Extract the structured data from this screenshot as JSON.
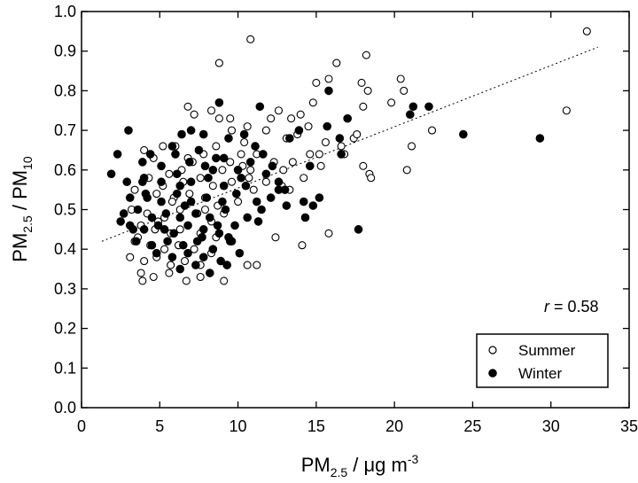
{
  "chart_data": {
    "type": "scatter",
    "title": "",
    "xlabel": {
      "main": "PM",
      "sub": "2.5",
      "rest": " / μg m",
      "sup": "-3"
    },
    "ylabel": {
      "a": "PM",
      "a_sub": "2.5",
      "mid": " / PM",
      "b_sub": "10"
    },
    "xlim": [
      0,
      35
    ],
    "ylim": [
      0.0,
      1.0
    ],
    "x_ticks": [
      "0",
      "5",
      "10",
      "15",
      "20",
      "25",
      "30",
      "35"
    ],
    "y_ticks": [
      "0.0",
      "0.1",
      "0.2",
      "0.3",
      "0.4",
      "0.5",
      "0.6",
      "0.7",
      "0.8",
      "0.9",
      "1.0"
    ],
    "grid": false,
    "legend_position": "bottom-right",
    "annotation": {
      "italic": "r",
      "text": " = 0.58"
    },
    "trendline": {
      "style": "dotted",
      "from": [
        1.3,
        0.42
      ],
      "to": [
        33.0,
        0.91
      ]
    },
    "series": [
      {
        "name": "Summer",
        "marker": "open-circle",
        "points": [
          [
            32.3,
            0.95
          ],
          [
            10.8,
            0.93
          ],
          [
            8.8,
            0.87
          ],
          [
            16.3,
            0.87
          ],
          [
            18.2,
            0.89
          ],
          [
            15.0,
            0.82
          ],
          [
            15.8,
            0.83
          ],
          [
            17.9,
            0.82
          ],
          [
            20.4,
            0.83
          ],
          [
            20.6,
            0.8
          ],
          [
            18.3,
            0.8
          ],
          [
            14.8,
            0.77
          ],
          [
            19.8,
            0.77
          ],
          [
            18.0,
            0.76
          ],
          [
            8.3,
            0.75
          ],
          [
            12.6,
            0.75
          ],
          [
            13.4,
            0.73
          ],
          [
            12.1,
            0.73
          ],
          [
            14.0,
            0.74
          ],
          [
            31.0,
            0.75
          ],
          [
            6.8,
            0.76
          ],
          [
            9.5,
            0.73
          ],
          [
            7.2,
            0.74
          ],
          [
            8.8,
            0.73
          ],
          [
            11.8,
            0.7
          ],
          [
            13.1,
            0.68
          ],
          [
            13.8,
            0.69
          ],
          [
            14.5,
            0.71
          ],
          [
            17.4,
            0.68
          ],
          [
            15.6,
            0.67
          ],
          [
            22.4,
            0.7
          ],
          [
            21.1,
            0.66
          ],
          [
            17.6,
            0.69
          ],
          [
            10.6,
            0.71
          ],
          [
            9.6,
            0.7
          ],
          [
            4.0,
            0.65
          ],
          [
            4.6,
            0.63
          ],
          [
            5.2,
            0.66
          ],
          [
            6.8,
            0.63
          ],
          [
            7.8,
            0.64
          ],
          [
            8.6,
            0.66
          ],
          [
            9.5,
            0.62
          ],
          [
            10.2,
            0.64
          ],
          [
            11.2,
            0.64
          ],
          [
            12.3,
            0.62
          ],
          [
            13.5,
            0.62
          ],
          [
            14.6,
            0.64
          ],
          [
            15.3,
            0.61
          ],
          [
            16.8,
            0.64
          ],
          [
            18.0,
            0.61
          ],
          [
            18.4,
            0.59
          ],
          [
            20.8,
            0.6
          ],
          [
            14.2,
            0.58
          ],
          [
            12.8,
            0.56
          ],
          [
            11.8,
            0.57
          ],
          [
            10.7,
            0.58
          ],
          [
            9.6,
            0.57
          ],
          [
            8.4,
            0.56
          ],
          [
            7.6,
            0.58
          ],
          [
            6.5,
            0.57
          ],
          [
            5.6,
            0.59
          ],
          [
            4.3,
            0.58
          ],
          [
            3.4,
            0.55
          ],
          [
            4.8,
            0.54
          ],
          [
            5.9,
            0.53
          ],
          [
            6.9,
            0.54
          ],
          [
            7.9,
            0.53
          ],
          [
            8.7,
            0.51
          ],
          [
            10.0,
            0.52
          ],
          [
            11.0,
            0.55
          ],
          [
            13.3,
            0.55
          ],
          [
            3.2,
            0.5
          ],
          [
            4.2,
            0.49
          ],
          [
            5.3,
            0.48
          ],
          [
            6.3,
            0.5
          ],
          [
            7.4,
            0.49
          ],
          [
            8.3,
            0.47
          ],
          [
            9.1,
            0.49
          ],
          [
            3.8,
            0.46
          ],
          [
            4.7,
            0.45
          ],
          [
            5.7,
            0.44
          ],
          [
            6.8,
            0.46
          ],
          [
            7.6,
            0.44
          ],
          [
            8.6,
            0.43
          ],
          [
            3.4,
            0.42
          ],
          [
            4.4,
            0.41
          ],
          [
            5.3,
            0.4
          ],
          [
            6.2,
            0.41
          ],
          [
            7.2,
            0.4
          ],
          [
            8.3,
            0.39
          ],
          [
            3.1,
            0.38
          ],
          [
            4.0,
            0.37
          ],
          [
            4.8,
            0.38
          ],
          [
            5.7,
            0.36
          ],
          [
            6.6,
            0.37
          ],
          [
            7.6,
            0.36
          ],
          [
            3.8,
            0.34
          ],
          [
            4.6,
            0.33
          ],
          [
            5.6,
            0.34
          ],
          [
            6.7,
            0.32
          ],
          [
            7.6,
            0.33
          ],
          [
            3.9,
            0.32
          ],
          [
            9.1,
            0.32
          ],
          [
            10.6,
            0.36
          ],
          [
            11.2,
            0.36
          ],
          [
            12.4,
            0.43
          ],
          [
            14.1,
            0.41
          ],
          [
            15.8,
            0.44
          ],
          [
            18.5,
            0.58
          ],
          [
            3.6,
            0.43
          ],
          [
            4.9,
            0.47
          ],
          [
            5.8,
            0.52
          ],
          [
            6.4,
            0.6
          ],
          [
            7.1,
            0.62
          ],
          [
            6.0,
            0.66
          ],
          [
            5.2,
            0.56
          ],
          [
            6.3,
            0.45
          ],
          [
            7.9,
            0.5
          ],
          [
            9.0,
            0.6
          ],
          [
            10.4,
            0.67
          ],
          [
            10.3,
            0.61
          ],
          [
            10.8,
            0.6
          ],
          [
            12.9,
            0.6
          ],
          [
            16.6,
            0.66
          ],
          [
            15.2,
            0.64
          ]
        ]
      },
      {
        "name": "Winter",
        "marker": "filled-circle",
        "points": [
          [
            8.8,
            0.77
          ],
          [
            11.4,
            0.76
          ],
          [
            15.8,
            0.8
          ],
          [
            21.2,
            0.76
          ],
          [
            22.2,
            0.76
          ],
          [
            21.0,
            0.74
          ],
          [
            17.0,
            0.73
          ],
          [
            24.4,
            0.69
          ],
          [
            29.3,
            0.68
          ],
          [
            15.7,
            0.71
          ],
          [
            3.0,
            0.7
          ],
          [
            6.4,
            0.69
          ],
          [
            7.0,
            0.7
          ],
          [
            7.8,
            0.69
          ],
          [
            9.4,
            0.68
          ],
          [
            10.4,
            0.69
          ],
          [
            11.1,
            0.66
          ],
          [
            13.9,
            0.7
          ],
          [
            13.3,
            0.68
          ],
          [
            16.5,
            0.68
          ],
          [
            16.6,
            0.64
          ],
          [
            2.3,
            0.64
          ],
          [
            3.9,
            0.62
          ],
          [
            5.1,
            0.61
          ],
          [
            6.0,
            0.64
          ],
          [
            6.9,
            0.62
          ],
          [
            7.9,
            0.61
          ],
          [
            9.1,
            0.63
          ],
          [
            10.0,
            0.6
          ],
          [
            11.6,
            0.64
          ],
          [
            12.2,
            0.61
          ],
          [
            14.6,
            0.61
          ],
          [
            1.9,
            0.59
          ],
          [
            2.9,
            0.57
          ],
          [
            4.0,
            0.58
          ],
          [
            5.1,
            0.57
          ],
          [
            6.1,
            0.59
          ],
          [
            7.0,
            0.57
          ],
          [
            8.1,
            0.58
          ],
          [
            9.1,
            0.56
          ],
          [
            10.2,
            0.58
          ],
          [
            11.8,
            0.59
          ],
          [
            12.6,
            0.57
          ],
          [
            3.1,
            0.53
          ],
          [
            4.1,
            0.54
          ],
          [
            5.1,
            0.52
          ],
          [
            6.1,
            0.54
          ],
          [
            7.0,
            0.52
          ],
          [
            8.0,
            0.53
          ],
          [
            9.0,
            0.52
          ],
          [
            9.9,
            0.54
          ],
          [
            11.2,
            0.52
          ],
          [
            12.1,
            0.53
          ],
          [
            13.1,
            0.51
          ],
          [
            14.2,
            0.52
          ],
          [
            2.7,
            0.49
          ],
          [
            3.6,
            0.5
          ],
          [
            4.5,
            0.48
          ],
          [
            5.4,
            0.49
          ],
          [
            6.3,
            0.48
          ],
          [
            7.3,
            0.49
          ],
          [
            8.2,
            0.48
          ],
          [
            9.2,
            0.5
          ],
          [
            10.6,
            0.48
          ],
          [
            11.5,
            0.5
          ],
          [
            3.1,
            0.46
          ],
          [
            4.0,
            0.45
          ],
          [
            4.9,
            0.46
          ],
          [
            5.9,
            0.44
          ],
          [
            6.8,
            0.46
          ],
          [
            7.8,
            0.45
          ],
          [
            8.8,
            0.44
          ],
          [
            9.8,
            0.46
          ],
          [
            14.3,
            0.48
          ],
          [
            3.5,
            0.42
          ],
          [
            4.5,
            0.41
          ],
          [
            5.5,
            0.42
          ],
          [
            6.5,
            0.41
          ],
          [
            7.4,
            0.42
          ],
          [
            8.4,
            0.4
          ],
          [
            9.5,
            0.42
          ],
          [
            4.8,
            0.39
          ],
          [
            5.8,
            0.38
          ],
          [
            6.8,
            0.39
          ],
          [
            7.8,
            0.38
          ],
          [
            8.9,
            0.37
          ],
          [
            6.3,
            0.35
          ],
          [
            7.3,
            0.36
          ],
          [
            8.2,
            0.34
          ],
          [
            9.3,
            0.36
          ],
          [
            17.7,
            0.45
          ],
          [
            15.2,
            0.53
          ],
          [
            14.8,
            0.51
          ],
          [
            13.0,
            0.55
          ],
          [
            2.5,
            0.47
          ],
          [
            3.9,
            0.57
          ],
          [
            4.4,
            0.64
          ],
          [
            5.8,
            0.66
          ],
          [
            7.5,
            0.65
          ],
          [
            8.6,
            0.63
          ],
          [
            10.8,
            0.62
          ],
          [
            9.6,
            0.42
          ],
          [
            10.1,
            0.39
          ],
          [
            6.6,
            0.51
          ],
          [
            5.3,
            0.45
          ],
          [
            4.2,
            0.53
          ],
          [
            3.3,
            0.45
          ],
          [
            8.7,
            0.46
          ],
          [
            12.6,
            0.55
          ],
          [
            10.5,
            0.56
          ],
          [
            8.4,
            0.6
          ],
          [
            6.3,
            0.56
          ],
          [
            7.7,
            0.43
          ],
          [
            9.4,
            0.43
          ],
          [
            11.3,
            0.47
          ]
        ]
      }
    ]
  }
}
